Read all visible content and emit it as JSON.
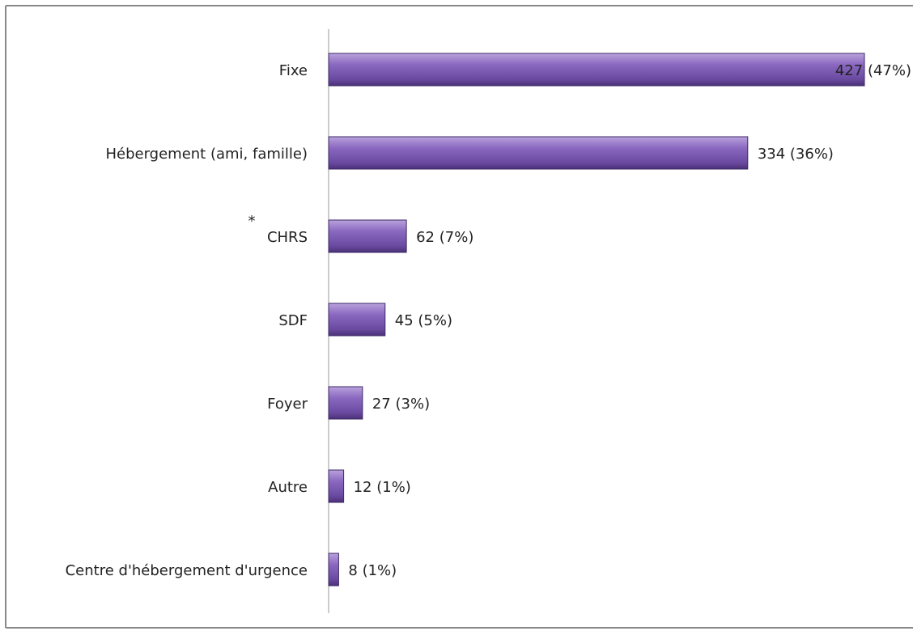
{
  "chart_data": {
    "type": "bar",
    "orientation": "horizontal",
    "categories": [
      "Fixe",
      "Hébergement (ami, famille)",
      "CHRS",
      "SDF",
      "Foyer",
      "Autre",
      "Centre d'hébergement  d'urgence"
    ],
    "values": [
      427,
      334,
      62,
      45,
      27,
      12,
      8
    ],
    "value_labels": [
      "427 (47%)",
      "334 (36%)",
      "62 (7%)",
      "45 (5%)",
      "27 (3%)",
      "12 (1%)",
      "8 (1%)"
    ],
    "color": "#7a58b0",
    "annotation": "*"
  }
}
